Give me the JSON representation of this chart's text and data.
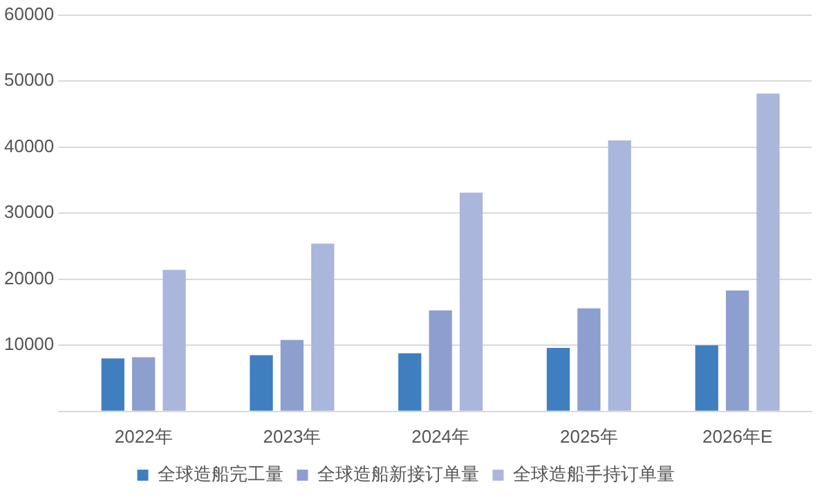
{
  "chart_data": {
    "type": "bar",
    "categories": [
      "2022年",
      "2023年",
      "2024年",
      "2025年",
      "2026年E"
    ],
    "series": [
      {
        "name": "全球造船完工量",
        "color": "#3f7fbf",
        "values": [
          8000,
          8500,
          8800,
          9600,
          10000
        ]
      },
      {
        "name": "全球造船新接订单量",
        "color": "#8d9fcf",
        "values": [
          8200,
          10800,
          15300,
          15600,
          18300
        ]
      },
      {
        "name": "全球造船手持订单量",
        "color": "#aab6dc",
        "values": [
          21400,
          25400,
          33100,
          41000,
          48100
        ]
      }
    ],
    "ylim": [
      0,
      60000
    ],
    "yticks": [
      {
        "value": 0,
        "label": null
      },
      10000,
      20000,
      30000,
      40000,
      50000,
      60000
    ],
    "grid": "y",
    "legend": "bottom"
  }
}
